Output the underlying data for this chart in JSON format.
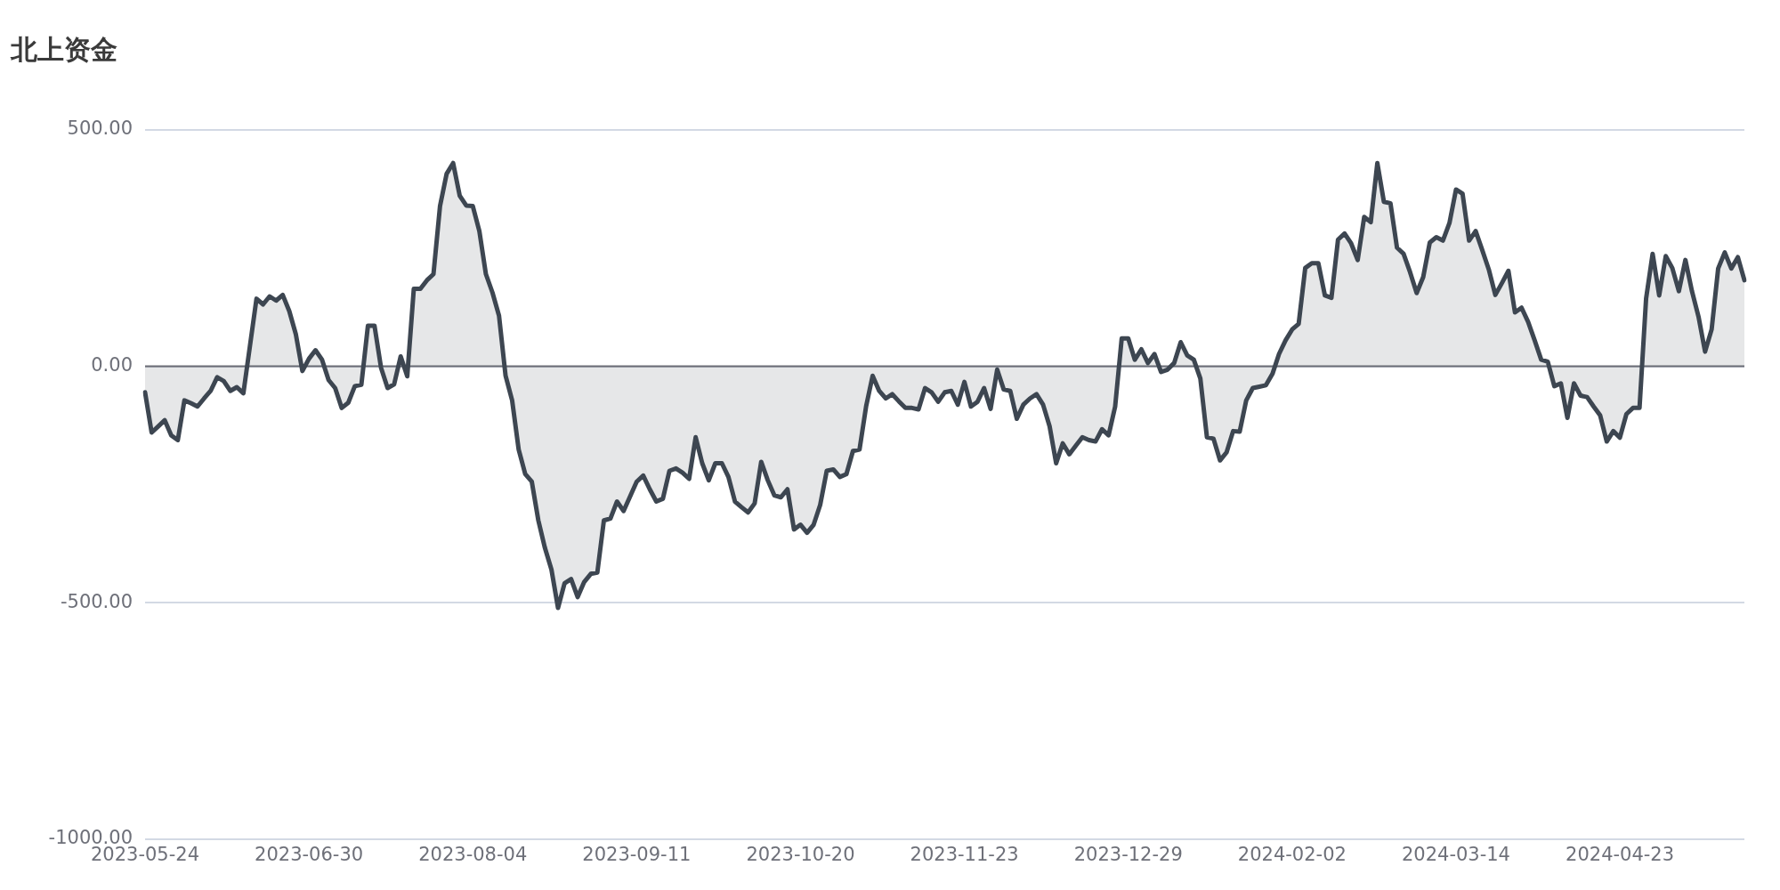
{
  "chart_data": {
    "type": "area",
    "title": "北上资金",
    "categories": [
      "2023-05-24",
      null,
      null,
      null,
      null,
      null,
      null,
      null,
      null,
      null,
      null,
      null,
      null,
      null,
      null,
      null,
      null,
      null,
      null,
      null,
      null,
      null,
      null,
      null,
      null,
      "2023-06-30",
      null,
      null,
      null,
      null,
      null,
      null,
      null,
      null,
      null,
      null,
      null,
      null,
      null,
      null,
      null,
      null,
      null,
      null,
      null,
      null,
      null,
      null,
      null,
      null,
      "2023-08-04",
      null,
      null,
      null,
      null,
      null,
      null,
      null,
      null,
      null,
      null,
      null,
      null,
      null,
      null,
      null,
      null,
      null,
      null,
      null,
      null,
      null,
      null,
      null,
      null,
      "2023-09-11",
      null,
      null,
      null,
      null,
      null,
      null,
      null,
      null,
      null,
      null,
      null,
      null,
      null,
      null,
      null,
      null,
      null,
      null,
      null,
      null,
      null,
      null,
      null,
      null,
      "2023-10-20",
      null,
      null,
      null,
      null,
      null,
      null,
      null,
      null,
      null,
      null,
      null,
      null,
      null,
      null,
      null,
      null,
      null,
      null,
      null,
      null,
      null,
      null,
      null,
      null,
      "2023-11-23",
      null,
      null,
      null,
      null,
      null,
      null,
      null,
      null,
      null,
      null,
      null,
      null,
      null,
      null,
      null,
      null,
      null,
      null,
      null,
      null,
      null,
      null,
      null,
      null,
      "2023-12-29",
      null,
      null,
      null,
      null,
      null,
      null,
      null,
      null,
      null,
      null,
      null,
      null,
      null,
      null,
      null,
      null,
      null,
      null,
      null,
      null,
      null,
      null,
      null,
      null,
      "2024-02-02",
      null,
      null,
      null,
      null,
      null,
      null,
      null,
      null,
      null,
      null,
      null,
      null,
      null,
      null,
      null,
      null,
      null,
      null,
      null,
      null,
      null,
      null,
      null,
      null,
      "2024-03-14",
      null,
      null,
      null,
      null,
      null,
      null,
      null,
      null,
      null,
      null,
      null,
      null,
      null,
      null,
      null,
      null,
      null,
      null,
      null,
      null,
      null,
      null,
      null,
      null,
      "2024-04-23",
      null,
      null,
      null,
      null,
      null,
      null,
      null,
      null,
      null,
      null,
      null,
      null,
      null,
      null,
      null,
      null,
      null,
      null,
      null
    ],
    "ylim": [
      -1000,
      500
    ],
    "yticks": [
      {
        "value": -1000,
        "label": "-1000.00"
      },
      {
        "value": -500,
        "label": "-500.00"
      },
      {
        "value": 0,
        "label": "0.00"
      },
      {
        "value": 500,
        "label": "500.00"
      }
    ],
    "grid": "y",
    "series": [
      {
        "color": "#3d4651",
        "values": [
          -55,
          -140,
          -127,
          -114,
          -146,
          -156,
          -72,
          -78,
          -85,
          -68,
          -52,
          -23,
          -31,
          -52,
          -44,
          -57,
          43,
          143,
          131,
          148,
          139,
          151,
          117,
          68,
          -10,
          16,
          34,
          14,
          -29,
          -46,
          -88,
          -77,
          -42,
          -39,
          86,
          86,
          -3,
          -46,
          -38,
          21,
          -21,
          164,
          164,
          182,
          195,
          339,
          407,
          430,
          361,
          340,
          339,
          286,
          195,
          156,
          107,
          -20,
          -72,
          -176,
          -228,
          -244,
          -326,
          -384,
          -430,
          -511,
          -459,
          -450,
          -488,
          -456,
          -439,
          -436,
          -326,
          -322,
          -286,
          -306,
          -275,
          -244,
          -231,
          -260,
          -286,
          -280,
          -221,
          -216,
          -225,
          -238,
          -150,
          -205,
          -241,
          -205,
          -205,
          -234,
          -286,
          -298,
          -309,
          -290,
          -202,
          -241,
          -273,
          -277,
          -260,
          -345,
          -335,
          -352,
          -335,
          -293,
          -221,
          -218,
          -234,
          -228,
          -179,
          -176,
          -85,
          -20,
          -52,
          -68,
          -59,
          -74,
          -88,
          -88,
          -91,
          -46,
          -55,
          -75,
          -55,
          -52,
          -81,
          -33,
          -85,
          -75,
          -46,
          -90,
          -7,
          -49,
          -52,
          -111,
          -81,
          -68,
          -59,
          -81,
          -127,
          -205,
          -163,
          -186,
          -168,
          -150,
          -156,
          -159,
          -133,
          -146,
          -85,
          59,
          59,
          14,
          36,
          7,
          26,
          -12,
          -7,
          7,
          51,
          23,
          14,
          -26,
          -150,
          -153,
          -199,
          -182,
          -137,
          -138,
          -72,
          -46,
          -43,
          -40,
          -16,
          26,
          55,
          78,
          90,
          208,
          218,
          218,
          150,
          145,
          268,
          281,
          260,
          225,
          316,
          305,
          430,
          348,
          345,
          251,
          238,
          199,
          155,
          189,
          262,
          273,
          266,
          303,
          374,
          365,
          266,
          286,
          246,
          205,
          151,
          176,
          202,
          114,
          124,
          94,
          55,
          14,
          10,
          -42,
          -36,
          -109,
          -36,
          -62,
          -65,
          -85,
          -104,
          -159,
          -137,
          -151,
          -101,
          -88,
          -88,
          143,
          238,
          150,
          233,
          208,
          159,
          225,
          159,
          105,
          31,
          78,
          207,
          241,
          207,
          231,
          182
        ]
      }
    ]
  }
}
